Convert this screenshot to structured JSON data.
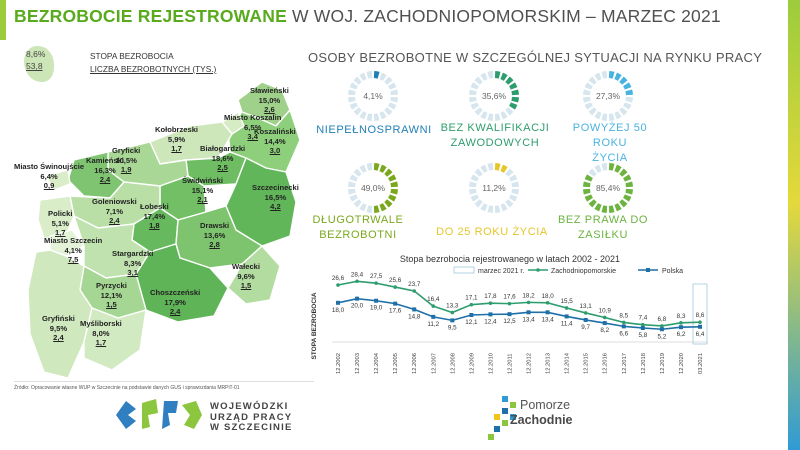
{
  "title": {
    "highlight": "BEZROBOCIE REJESTROWANE",
    "rest": " W WOJ. ZACHODNIOPOMORSKIM – MARZEC 2021"
  },
  "legend": {
    "rate_value": "8,6%",
    "count_value": "53,8",
    "rate_label": "STOPA BEZROBOCIA",
    "count_label": "LICZBA BEZROBOTNYCH (TYS.)"
  },
  "map_regions": [
    {
      "name": "Sławieński",
      "rate": "15,0%",
      "count": "2,6"
    },
    {
      "name": "Miasto Koszalin",
      "rate": "6,5%",
      "count": "3,4"
    },
    {
      "name": "Koszaliński",
      "rate": "14,4%",
      "count": "3,0"
    },
    {
      "name": "Kołobrzeski",
      "rate": "5,9%",
      "count": "1,7"
    },
    {
      "name": "Białogardzki",
      "rate": "18,6%",
      "count": "2,5"
    },
    {
      "name": "Gryficki",
      "rate": "10,5%",
      "count": "1,9"
    },
    {
      "name": "Kamieński",
      "rate": "16,3%",
      "count": "2,4"
    },
    {
      "name": "Miasto Świnoujście",
      "rate": "6,4%",
      "count": "0,9"
    },
    {
      "name": "Świdwiński",
      "rate": "15,1%",
      "count": "2,1"
    },
    {
      "name": "Szczecinecki",
      "rate": "16,5%",
      "count": "4,2"
    },
    {
      "name": "Goleniowski",
      "rate": "7,1%",
      "count": "2,4"
    },
    {
      "name": "Łobeski",
      "rate": "17,4%",
      "count": "1,8"
    },
    {
      "name": "Policki",
      "rate": "5,1%",
      "count": "1,7"
    },
    {
      "name": "Drawski",
      "rate": "13,6%",
      "count": "2,8"
    },
    {
      "name": "Miasto Szczecin",
      "rate": "4,1%",
      "count": "7,5"
    },
    {
      "name": "Stargardzki",
      "rate": "8,3%",
      "count": "3,1"
    },
    {
      "name": "Wałecki",
      "rate": "9,6%",
      "count": "1,5"
    },
    {
      "name": "Pyrzycki",
      "rate": "12,1%",
      "count": "1,5"
    },
    {
      "name": "Choszczeński",
      "rate": "17,9%",
      "count": "2,4"
    },
    {
      "name": "Gryfiński",
      "rate": "9,5%",
      "count": "2,4"
    },
    {
      "name": "Myśliborski",
      "rate": "8,0%",
      "count": "1,7"
    }
  ],
  "source": "Źródło: Opracowanie własne WUP w Szczecinie na podstawie danych GUS i sprawozdania MRPiT-01",
  "logos": {
    "wup_line1": "WOJEWÓDZKI",
    "wup_line2": "URZĄD PRACY",
    "wup_line3": "W SZCZECINIE",
    "pz_line1": "Pomorze",
    "pz_line2": "Zachodnie"
  },
  "special_section": {
    "title": "OSOBY BEZROBOTNE W SZCZEGÓLNEJ SYTUACJI NA RYNKU PRACY",
    "groups": [
      {
        "value": "4,1%",
        "pct": 4.1,
        "label1": "NIEPEŁNOSPRAWNI",
        "label2": "",
        "color": "#1f7fb6"
      },
      {
        "value": "35,6%",
        "pct": 35.6,
        "label1": "BEZ KWALIFIKACJI",
        "label2": "ZAWODOWYCH",
        "color": "#2e9d6e"
      },
      {
        "value": "27,3%",
        "pct": 27.3,
        "label1": "POWYŻEJ 50 ROKU",
        "label2": "ŻYCIA",
        "color": "#49b3e0"
      },
      {
        "value": "49,0%",
        "pct": 49.0,
        "label1": "DŁUGOTRWALE",
        "label2": "BEZROBOTNI",
        "color": "#7aa81c"
      },
      {
        "value": "11,2%",
        "pct": 11.2,
        "label1": "DO 25 ROKU ŻYCIA",
        "label2": "",
        "color": "#e6c629"
      },
      {
        "value": "85,4%",
        "pct": 85.4,
        "label1": "BEZ PRAWA DO",
        "label2": "ZASIŁKU",
        "color": "#6cb33f"
      }
    ]
  },
  "chart_data": {
    "type": "line",
    "title": "Stopa bezrobocia rejestrowanego w latach 2002 - 2021",
    "ylabel": "STOPA BEZROBOCIA",
    "categories": [
      "12.2002",
      "12.2003",
      "12.2004",
      "12.2005",
      "12.2006",
      "12.2007",
      "12.2008",
      "12.2009",
      "12.2010",
      "12.2011",
      "12.2012",
      "12.2013",
      "12.2014",
      "12.2015",
      "12.2016",
      "12.2017",
      "12.2018",
      "12.2019",
      "12.2020",
      "03.2021"
    ],
    "series": [
      {
        "name": "Zachodniopomorskie",
        "color": "#2e9d6e",
        "values": [
          26.6,
          28.4,
          27.5,
          25.6,
          23.7,
          16.4,
          13.3,
          17.1,
          17.8,
          17.6,
          18.2,
          18.0,
          15.5,
          13.1,
          10.9,
          8.5,
          7.4,
          6.8,
          8.3,
          8.6
        ],
        "labels": [
          "26,6",
          "28,4",
          "27,5",
          "25,6",
          "23,7",
          "16,4",
          "13,3",
          "17,1",
          "17,8",
          "17,6",
          "18,2",
          "18,0",
          "15,5",
          "13,1",
          "10,9",
          "8,5",
          "7,4",
          "6,8",
          "8,3",
          "8,6"
        ]
      },
      {
        "name": "Polska",
        "color": "#1f6fa8",
        "values": [
          18.0,
          20.0,
          19.0,
          17.6,
          14.8,
          11.2,
          9.5,
          12.1,
          12.4,
          12.5,
          13.4,
          13.4,
          11.4,
          9.7,
          8.2,
          6.6,
          5.8,
          5.2,
          6.2,
          6.4
        ],
        "labels": [
          "18,0",
          "20,0",
          "19,0",
          "17,6",
          "14,8",
          "11,2",
          "9,5",
          "12,1",
          "12,4",
          "12,5",
          "13,4",
          "13,4",
          "11,4",
          "9,7",
          "8,2",
          "6,6",
          "5,8",
          "5,2",
          "6,2",
          "6,4"
        ]
      }
    ],
    "highlight_label": "marzec 2021 r.",
    "ylim": [
      0,
      30
    ]
  }
}
